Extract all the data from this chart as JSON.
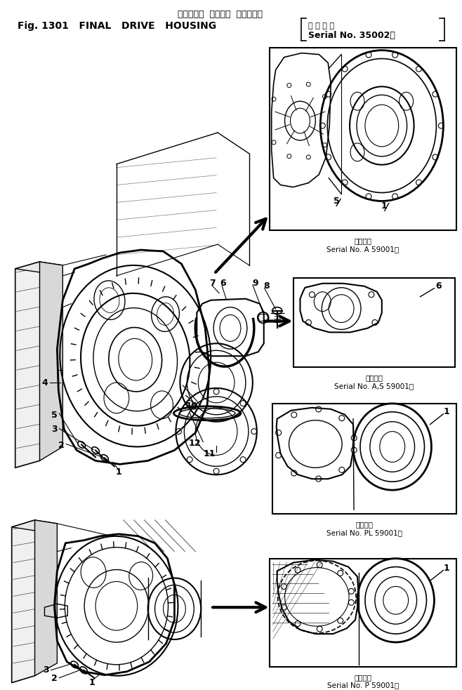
{
  "title_jp": "ファイナル  ドライブ  ハウジング",
  "title_en": "Fig. 1301   FINAL   DRIVE   HOUSING",
  "serial_top": "適 用 号 機",
  "serial_no": "Serial No. 35002～",
  "cap1a": "適用機種",
  "cap1b": "Serial No. A 59001～",
  "cap2a": "適用機種",
  "cap2b": "Serial No. A,S 59001～",
  "cap3a": "適用機種",
  "cap3b": "Serial No. PL 59001～",
  "cap4a": "適用機種",
  "cap4b": "Serial No. P 59001～",
  "bg": "#ffffff",
  "fg": "#000000",
  "figsize": [
    6.58,
    9.83
  ],
  "dpi": 100
}
